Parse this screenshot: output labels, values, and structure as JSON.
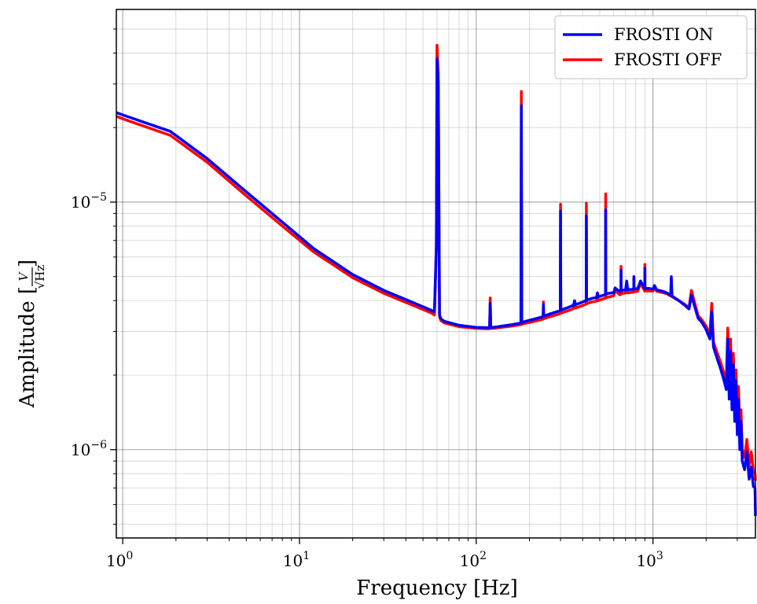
{
  "chart_data": {
    "type": "line",
    "title": "",
    "xlabel": "Frequency [Hz]",
    "ylabel_prefix": "Amplitude [",
    "ylabel_frac_num": "V",
    "ylabel_frac_den": "√Hz",
    "ylabel_suffix": "]",
    "xscale": "log",
    "yscale": "log",
    "xlim": [
      0.92,
      3800
    ],
    "ylim": [
      4.4e-07,
      6e-05
    ],
    "grid": true,
    "legend_position": "upper-right",
    "x_major_ticks": [
      {
        "value": 1,
        "base": "10",
        "exp": "0"
      },
      {
        "value": 10,
        "base": "10",
        "exp": "1"
      },
      {
        "value": 100,
        "base": "10",
        "exp": "2"
      },
      {
        "value": 1000,
        "base": "10",
        "exp": "3"
      }
    ],
    "y_major_ticks": [
      {
        "value": 1e-06,
        "base": "10",
        "exp": "−6"
      },
      {
        "value": 1e-05,
        "base": "10",
        "exp": "−5"
      }
    ],
    "series": [
      {
        "name": "FROSTI ON",
        "color": "#0000ff",
        "x": [
          0.92,
          1,
          1.86,
          3,
          5,
          8,
          12,
          20,
          30,
          45,
          56,
          58,
          59.5,
          60,
          61,
          62,
          63,
          66,
          80,
          100,
          115,
          119,
          120,
          121,
          125,
          160,
          179,
          180,
          181,
          190,
          230,
          239,
          240,
          241,
          260,
          290,
          299,
          300,
          301,
          330,
          355,
          360,
          365,
          400,
          410,
          419,
          420,
          421,
          450,
          480,
          485,
          490,
          520,
          539,
          540,
          541,
          580,
          600,
          610,
          650,
          659,
          660,
          661,
          700,
          710,
          720,
          760,
          779,
          780,
          781,
          820,
          850,
          899,
          900,
          901,
          950,
          1000,
          1020,
          1050,
          1150,
          1200,
          1260,
          1270,
          1280,
          1400,
          1500,
          1600,
          1650,
          1800,
          1900,
          2000,
          2100,
          2150,
          2200,
          2300,
          2400,
          2500,
          2600,
          2650,
          2700,
          2750,
          2800,
          2850,
          2900,
          2950,
          3000,
          3050,
          3100,
          3150,
          3200,
          3300,
          3400,
          3500,
          3600,
          3700,
          3780,
          3800
        ],
        "y": [
          2.3e-05,
          2.25e-05,
          1.93e-05,
          1.5e-05,
          1.1e-05,
          8.3e-06,
          6.5e-06,
          5.1e-06,
          4.4e-06,
          3.9e-06,
          3.65e-06,
          3.6e-06,
          6.5e-06,
          3.8e-05,
          3e-05,
          3.5e-06,
          3.38e-06,
          3.3e-06,
          3.18e-06,
          3.12e-06,
          3.11e-06,
          3.11e-06,
          3.9e-06,
          3.12e-06,
          3.12e-06,
          3.2e-06,
          3.25e-06,
          2.45e-05,
          3.26e-06,
          3.3e-06,
          3.42e-06,
          3.45e-06,
          3.85e-06,
          3.46e-06,
          3.53e-06,
          3.62e-06,
          3.65e-06,
          9.2e-06,
          3.66e-06,
          3.75e-06,
          3.83e-06,
          4e-06,
          3.85e-06,
          3.95e-06,
          3.98e-06,
          4e-06,
          8.8e-06,
          4.02e-06,
          4.08e-06,
          4.12e-06,
          4.3e-06,
          4.14e-06,
          4.2e-06,
          4.23e-06,
          9.3e-06,
          4.25e-06,
          4.3e-06,
          4.3e-06,
          4.5e-06,
          4.35e-06,
          4.38e-06,
          5.3e-06,
          4.4e-06,
          4.42e-06,
          4.8e-06,
          4.43e-06,
          4.44e-06,
          4.45e-06,
          5e-06,
          4.46e-06,
          4.47e-06,
          4.8e-06,
          4.48e-06,
          5.4e-06,
          4.48e-06,
          4.48e-06,
          4.45e-06,
          4.6e-06,
          4.42e-06,
          4.35e-06,
          4.3e-06,
          4.2e-06,
          5e-06,
          4.18e-06,
          4e-06,
          3.85e-06,
          3.7e-06,
          4.2e-06,
          3.4e-06,
          3.25e-06,
          3.05e-06,
          2.8e-06,
          3.6e-06,
          2.6e-06,
          2.35e-06,
          2.15e-06,
          1.95e-06,
          1.75e-06,
          2.8e-06,
          1.6e-06,
          2.5e-06,
          1.45e-06,
          2.2e-06,
          1.3e-06,
          1.9e-06,
          1.15e-06,
          1.6e-06,
          1e-06,
          1.3e-06,
          9e-07,
          8.3e-07,
          9.8e-07,
          7.6e-07,
          8.5e-07,
          7.1e-07,
          7e-07,
          5.4e-07
        ]
      },
      {
        "name": "FROSTI OFF",
        "color": "#ff0000",
        "x": [
          0.92,
          1,
          1.86,
          3,
          5,
          8,
          12,
          20,
          30,
          45,
          56,
          58,
          59.5,
          60,
          61,
          62,
          63,
          66,
          80,
          100,
          115,
          119,
          120,
          121,
          125,
          160,
          179,
          180,
          181,
          190,
          230,
          239,
          240,
          241,
          260,
          290,
          299,
          300,
          301,
          330,
          355,
          360,
          365,
          400,
          410,
          419,
          420,
          421,
          450,
          480,
          485,
          490,
          520,
          539,
          540,
          541,
          580,
          600,
          610,
          650,
          659,
          660,
          661,
          700,
          710,
          720,
          760,
          779,
          780,
          781,
          820,
          850,
          899,
          900,
          901,
          950,
          1000,
          1020,
          1050,
          1150,
          1200,
          1260,
          1270,
          1280,
          1400,
          1500,
          1600,
          1650,
          1800,
          1900,
          2000,
          2100,
          2150,
          2200,
          2300,
          2400,
          2500,
          2600,
          2650,
          2700,
          2750,
          2800,
          2850,
          2900,
          2950,
          3000,
          3050,
          3100,
          3150,
          3200,
          3300,
          3400,
          3500,
          3600,
          3700,
          3780,
          3800
        ],
        "y": [
          2.22e-05,
          2.17e-05,
          1.86e-05,
          1.45e-05,
          1.06e-05,
          8e-06,
          6.3e-06,
          4.95e-06,
          4.28e-06,
          3.8e-06,
          3.56e-06,
          3.5e-06,
          6.8e-06,
          4.3e-05,
          3.3e-05,
          3.45e-06,
          3.33e-06,
          3.25e-06,
          3.14e-06,
          3.09e-06,
          3.08e-06,
          3.08e-06,
          4.1e-06,
          3.09e-06,
          3.09e-06,
          3.16e-06,
          3.2e-06,
          2.8e-05,
          3.21e-06,
          3.24e-06,
          3.34e-06,
          3.37e-06,
          3.95e-06,
          3.38e-06,
          3.44e-06,
          3.52e-06,
          3.55e-06,
          9.8e-06,
          3.56e-06,
          3.64e-06,
          3.71e-06,
          3.9e-06,
          3.73e-06,
          3.82e-06,
          3.85e-06,
          3.87e-06,
          9.9e-06,
          3.89e-06,
          3.95e-06,
          3.98e-06,
          4.15e-06,
          4e-06,
          4.06e-06,
          4.09e-06,
          1.08e-05,
          4.11e-06,
          4.16e-06,
          4.18e-06,
          4.4e-06,
          4.22e-06,
          4.25e-06,
          5.5e-06,
          4.27e-06,
          4.29e-06,
          4.7e-06,
          4.3e-06,
          4.32e-06,
          4.33e-06,
          4.9e-06,
          4.34e-06,
          4.36e-06,
          4.7e-06,
          4.37e-06,
          5.6e-06,
          4.38e-06,
          4.38e-06,
          4.37e-06,
          4.5e-06,
          4.36e-06,
          4.3e-06,
          4.26e-06,
          4.18e-06,
          4.9e-06,
          4.15e-06,
          4e-06,
          3.88e-06,
          3.75e-06,
          4.4e-06,
          3.48e-06,
          3.33e-06,
          3.15e-06,
          2.92e-06,
          3.9e-06,
          2.72e-06,
          2.48e-06,
          2.28e-06,
          2.08e-06,
          1.88e-06,
          3.1e-06,
          1.72e-06,
          2.8e-06,
          1.57e-06,
          2.45e-06,
          1.42e-06,
          2.1e-06,
          1.27e-06,
          1.8e-06,
          1.12e-06,
          1.45e-06,
          1e-06,
          9.3e-07,
          1.1e-06,
          8.6e-07,
          9.8e-07,
          8.2e-07,
          8e-07,
          7.5e-07
        ]
      }
    ]
  }
}
